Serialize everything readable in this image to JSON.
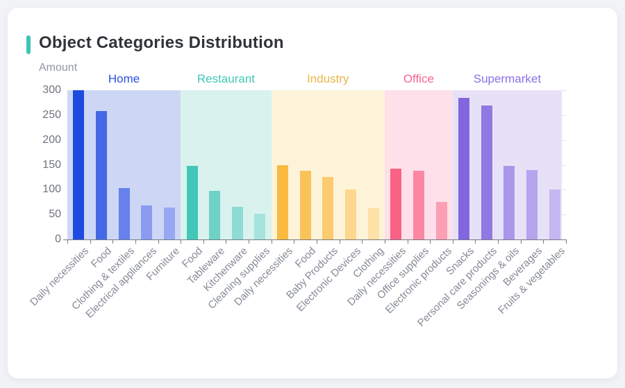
{
  "page": {
    "background": "#f1f3f6",
    "card_background": "#ffffff"
  },
  "header": {
    "title": "Object Categories Distribution",
    "accent_color": "#3fc3b7"
  },
  "chart_data": {
    "type": "bar",
    "title": "Object Categories Distribution",
    "xlabel": "",
    "ylabel": "Amount",
    "ylim": [
      0,
      300
    ],
    "yticks": [
      0,
      50,
      100,
      150,
      200,
      250,
      300
    ],
    "grid": true,
    "legend_position": "none",
    "layout_hint": "grouped bars with shaded category regions, x labels rotated 45deg",
    "groups": [
      {
        "name": "Home",
        "label_color": "#2a4fe2",
        "region_color": "#cdd7f5",
        "items": [
          {
            "label": "Daily necessities",
            "value": 300,
            "color": "#1d4be0"
          },
          {
            "label": "Food",
            "value": 258,
            "color": "#4468e7"
          },
          {
            "label": "Clothing & textiles",
            "value": 103,
            "color": "#6681ec"
          },
          {
            "label": "Electrical appliances",
            "value": 69,
            "color": "#8a9bef"
          },
          {
            "label": "Furniture",
            "value": 64,
            "color": "#98a7f1"
          }
        ]
      },
      {
        "name": "Restaurant",
        "label_color": "#41c8b6",
        "region_color": "#d9f2ee",
        "items": [
          {
            "label": "Food",
            "value": 148,
            "color": "#42c6b8"
          },
          {
            "label": "Tableware",
            "value": 97,
            "color": "#6fd2c7"
          },
          {
            "label": "Kitchenware",
            "value": 65,
            "color": "#8edcd4"
          },
          {
            "label": "Cleaning supplies",
            "value": 51,
            "color": "#a5e3dc"
          }
        ]
      },
      {
        "name": "Industry",
        "label_color": "#e9b44a",
        "region_color": "#fdf3d9",
        "items": [
          {
            "label": "Daily necessities",
            "value": 150,
            "color": "#f9ba3f"
          },
          {
            "label": "Food",
            "value": 138,
            "color": "#fac35a"
          },
          {
            "label": "Baby Products",
            "value": 126,
            "color": "#fbcb6e"
          },
          {
            "label": "Electronic Devices",
            "value": 100,
            "color": "#fcd78d"
          },
          {
            "label": "Clothing",
            "value": 63,
            "color": "#fde1a6"
          }
        ]
      },
      {
        "name": "Office",
        "label_color": "#f7638e",
        "region_color": "#fde0e9",
        "items": [
          {
            "label": "Daily necessities",
            "value": 142,
            "color": "#fa6185"
          },
          {
            "label": "Office supplies",
            "value": 138,
            "color": "#fb87a2"
          },
          {
            "label": "Electronic products",
            "value": 75,
            "color": "#fc9eb5"
          }
        ]
      },
      {
        "name": "Supermarket",
        "label_color": "#8b6fe8",
        "region_color": "#e7e1f8",
        "items": [
          {
            "label": "Snacks",
            "value": 284,
            "color": "#8166dd"
          },
          {
            "label": "Personal care products",
            "value": 270,
            "color": "#9278e2"
          },
          {
            "label": "Seasonings & oils",
            "value": 148,
            "color": "#ab97e9"
          },
          {
            "label": "Beverages",
            "value": 140,
            "color": "#b6a4ed"
          },
          {
            "label": "Fruits & vegetables",
            "value": 101,
            "color": "#c5b7f1"
          }
        ]
      }
    ]
  }
}
